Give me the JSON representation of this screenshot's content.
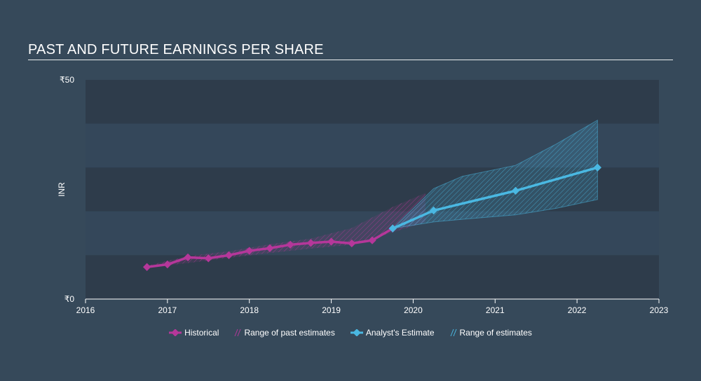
{
  "title": "PAST AND FUTURE EARNINGS PER SHARE",
  "colors": {
    "background": "#36495a",
    "band_dark": "#2e3c4b",
    "band_light": "#34475a",
    "historical": "#b5379a",
    "estimate": "#4ab8e2",
    "axis": "#ffffff"
  },
  "chart_data": {
    "type": "line",
    "title": "PAST AND FUTURE EARNINGS PER SHARE",
    "ylabel": "INR",
    "ylim": [
      0,
      50
    ],
    "xlim": [
      2016,
      2023
    ],
    "y_ticks": [
      {
        "value": 50,
        "label": "₹50"
      },
      {
        "value": 0,
        "label": "₹0"
      }
    ],
    "x_ticks": [
      {
        "value": 2016,
        "label": "2016"
      },
      {
        "value": 2017,
        "label": "2017"
      },
      {
        "value": 2018,
        "label": "2018"
      },
      {
        "value": 2019,
        "label": "2019"
      },
      {
        "value": 2020,
        "label": "2020"
      },
      {
        "value": 2021,
        "label": "2021"
      },
      {
        "value": 2022,
        "label": "2022"
      },
      {
        "value": 2023,
        "label": "2023"
      }
    ],
    "series": [
      {
        "name": "Historical",
        "x": [
          2016.75,
          2017.0,
          2017.25,
          2017.5,
          2017.75,
          2018.0,
          2018.25,
          2018.5,
          2018.75,
          2019.0,
          2019.25,
          2019.5,
          2019.75
        ],
        "y": [
          7.3,
          7.9,
          9.5,
          9.3,
          10.0,
          11.0,
          11.6,
          12.4,
          12.8,
          13.1,
          12.7,
          13.4,
          16.1
        ]
      },
      {
        "name": "Analyst's Estimate",
        "x": [
          2019.75,
          2020.25,
          2021.25,
          2022.25
        ],
        "y": [
          16.1,
          20.2,
          24.7,
          30.0
        ]
      }
    ],
    "past_estimate_range": {
      "name": "Range of past estimates",
      "x": [
        2016.75,
        2017.25,
        2017.75,
        2018.25,
        2018.75,
        2019.25,
        2019.75,
        2020.15
      ],
      "low": [
        7.2,
        8.2,
        9.4,
        10.5,
        11.5,
        12.4,
        15.2,
        17.6
      ],
      "high": [
        7.6,
        9.8,
        10.9,
        12.5,
        13.8,
        16.2,
        21.0,
        24.2
      ]
    },
    "estimate_range": {
      "name": "Range of estimates",
      "x": [
        2019.75,
        2020.25,
        2020.6,
        2021.25,
        2021.75,
        2022.25
      ],
      "low": [
        16.1,
        17.6,
        18.2,
        19.2,
        20.7,
        22.7
      ],
      "high": [
        16.1,
        25.2,
        28.0,
        30.5,
        35.4,
        40.8
      ]
    },
    "legend": [
      {
        "label": "Historical",
        "kind": "line",
        "color": "#b5379a"
      },
      {
        "label": "Range of past estimates",
        "kind": "hatch",
        "color": "#b5379a"
      },
      {
        "label": "Analyst's Estimate",
        "kind": "line",
        "color": "#4ab8e2"
      },
      {
        "label": "Range of estimates",
        "kind": "hatch",
        "color": "#4ab8e2"
      }
    ],
    "legend_position": "bottom-center"
  }
}
